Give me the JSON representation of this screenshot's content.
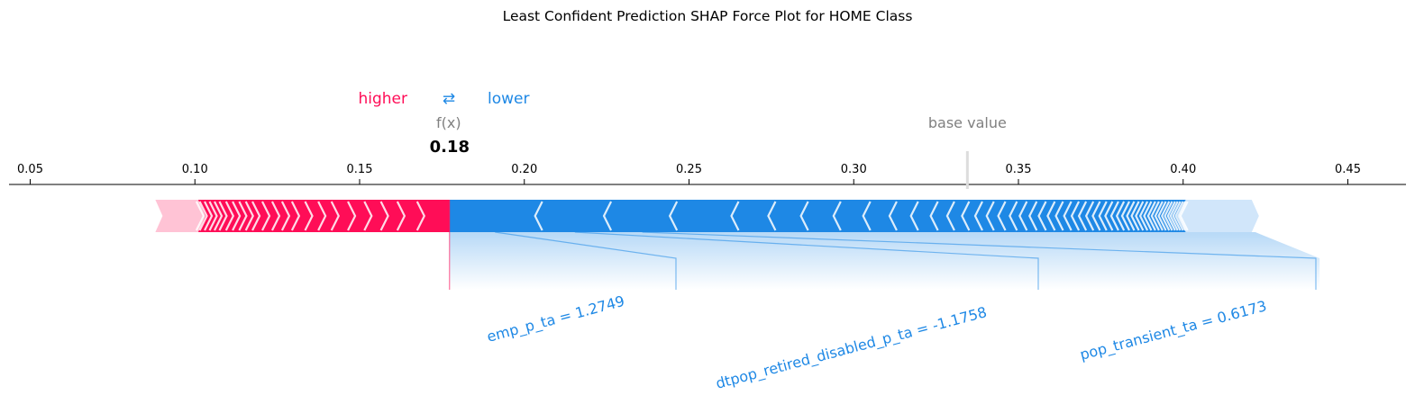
{
  "title": "Least Confident Prediction SHAP Force Plot for HOME Class",
  "colors": {
    "higher": "#ff0d57",
    "higher_light": "#ffc3d5",
    "lower": "#1e88e5",
    "lower_light": "#d1e6fa",
    "gray": "#808080"
  },
  "legend": {
    "higher_label": "higher",
    "arrow_symbol": "⇄",
    "lower_label": "lower"
  },
  "chart_data": {
    "type": "force",
    "xlim": [
      0.046,
      0.47
    ],
    "x_ticks": [
      0.05,
      0.1,
      0.15,
      0.2,
      0.25,
      0.3,
      0.35,
      0.4,
      0.45
    ],
    "x_tick_labels": [
      "0.05",
      "0.10",
      "0.15",
      "0.20",
      "0.25",
      "0.30",
      "0.35",
      "0.40",
      "0.45"
    ],
    "base_value": 0.3345,
    "base_value_label": "base value",
    "output_value": 0.1773,
    "output_label": "f(x)",
    "output_value_text": "0.18",
    "higher_range": [
      0.088,
      0.1773
    ],
    "lower_range": [
      0.1773,
      0.423
    ],
    "higher_boundaries": [
      0.168,
      0.162,
      0.157,
      0.152,
      0.147,
      0.142,
      0.138,
      0.134,
      0.13,
      0.127,
      0.124,
      0.121,
      0.118,
      0.116,
      0.114,
      0.112,
      0.11,
      0.108,
      0.1065,
      0.105,
      0.1035,
      0.102,
      0.101
    ],
    "lower_boundaries": [
      0.2049,
      0.2258,
      0.2458,
      0.2645,
      0.2757,
      0.2856,
      0.2955,
      0.3045,
      0.3125,
      0.319,
      0.325,
      0.33,
      0.3345,
      0.3385,
      0.342,
      0.3455,
      0.349,
      0.352,
      0.355,
      0.3578,
      0.3605,
      0.363,
      0.3655,
      0.3678,
      0.37,
      0.3722,
      0.3742,
      0.3762,
      0.378,
      0.3798,
      0.3815,
      0.3831,
      0.3846,
      0.386,
      0.3873,
      0.3886,
      0.3898,
      0.391,
      0.3921,
      0.3932,
      0.3942,
      0.3952,
      0.3961,
      0.397,
      0.3978,
      0.3986,
      0.3994,
      0.4001,
      0.4008
    ],
    "labeled_features": [
      {
        "label": "emp_p_ta = 1.2749",
        "start": 0.1773,
        "end": 0.2049
      },
      {
        "label": "dtpop_retired_disabled_p_ta = -1.1758",
        "start": 0.2049,
        "end": 0.2258
      },
      {
        "label": "pop_transient_ta = 0.6173",
        "start": 0.2258,
        "end": 0.2458
      }
    ]
  }
}
